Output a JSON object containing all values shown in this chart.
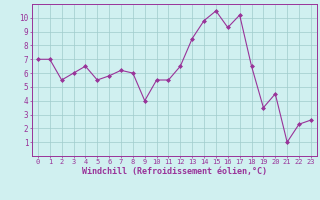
{
  "x": [
    0,
    1,
    2,
    3,
    4,
    5,
    6,
    7,
    8,
    9,
    10,
    11,
    12,
    13,
    14,
    15,
    16,
    17,
    18,
    19,
    20,
    21,
    22,
    23
  ],
  "y": [
    7.0,
    7.0,
    5.5,
    6.0,
    6.5,
    5.5,
    5.8,
    6.2,
    6.0,
    4.0,
    5.5,
    5.5,
    6.5,
    8.5,
    9.8,
    10.5,
    9.3,
    10.2,
    6.5,
    3.5,
    4.5,
    1.0,
    2.3,
    2.6
  ],
  "line_color": "#993399",
  "marker": "D",
  "marker_size": 2.0,
  "bg_color": "#d0f0f0",
  "grid_color": "#a0cccc",
  "xlabel": "Windchill (Refroidissement éolien,°C)",
  "xlabel_color": "#993399",
  "tick_color": "#993399",
  "ylim": [
    0,
    11
  ],
  "xlim": [
    -0.5,
    23.5
  ],
  "yticks": [
    1,
    2,
    3,
    4,
    5,
    6,
    7,
    8,
    9,
    10
  ],
  "xticks": [
    0,
    1,
    2,
    3,
    4,
    5,
    6,
    7,
    8,
    9,
    10,
    11,
    12,
    13,
    14,
    15,
    16,
    17,
    18,
    19,
    20,
    21,
    22,
    23
  ],
  "tick_fontsize": 5.0,
  "xlabel_fontsize": 6.0,
  "ytick_fontsize": 5.5
}
